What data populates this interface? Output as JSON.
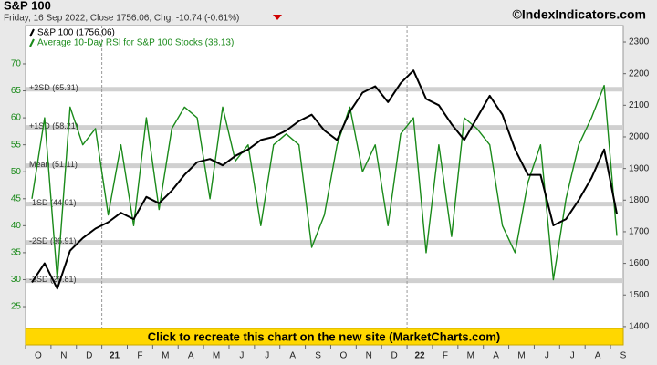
{
  "header": {
    "title": "S&P 100",
    "subtitle": "Friday, 16 Sep 2022, Close 1756.06, Chg. -10.74 (-0.61%)",
    "site": "©IndexIndicators.com"
  },
  "banner": "Click to recreate this chart on the new site (MarketCharts.com)",
  "chart_data": {
    "type": "line",
    "categories": [
      "O",
      null,
      "N",
      null,
      "D",
      null,
      "21",
      null,
      "F",
      null,
      "M",
      null,
      "A",
      null,
      "M",
      null,
      "J",
      null,
      "J",
      null,
      "A",
      null,
      "S",
      null,
      "O",
      null,
      "N",
      null,
      "D",
      null,
      "22",
      null,
      "F",
      null,
      "M",
      null,
      "A",
      null,
      "M",
      null,
      "J",
      null,
      "J",
      null,
      "A",
      null,
      "S"
    ],
    "series": [
      {
        "name": "S&P 100 (1756.06)",
        "color": "#000000",
        "axis": "y2",
        "values": [
          1540,
          1600,
          1520,
          1640,
          1680,
          1710,
          1730,
          1760,
          1740,
          1810,
          1790,
          1830,
          1880,
          1920,
          1930,
          1910,
          1940,
          1960,
          1990,
          2000,
          2020,
          2050,
          2070,
          2020,
          1990,
          2080,
          2140,
          2160,
          2110,
          2170,
          2210,
          2120,
          2100,
          2040,
          1990,
          2060,
          2130,
          2070,
          1960,
          1880,
          1880,
          1720,
          1740,
          1800,
          1870,
          1960,
          1756.06
        ]
      },
      {
        "name": "Average 10-Day RSI for S&P 100 Stocks (38.13)",
        "color": "#1a8a1a",
        "values": [
          45,
          60,
          30,
          62,
          55,
          58,
          42,
          55,
          40,
          60,
          43,
          58,
          62,
          60,
          45,
          62,
          52,
          55,
          40,
          55,
          57,
          55,
          36,
          42,
          55,
          62,
          50,
          55,
          40,
          57,
          60,
          35,
          55,
          38,
          60,
          58,
          55,
          40,
          35,
          48,
          55,
          30,
          45,
          55,
          60,
          66,
          38.13
        ]
      }
    ],
    "bands": [
      {
        "label": "+2SD (65.31)",
        "value": 65.31
      },
      {
        "label": "+1SD (58.21)",
        "value": 58.21
      },
      {
        "label": "Mean (51.11)",
        "value": 51.11
      },
      {
        "label": "-1SD (44.01)",
        "value": 44.01
      },
      {
        "label": "-2SD (36.91)",
        "value": 36.91
      },
      {
        "label": "-3SD (29.81)",
        "value": 29.81
      }
    ],
    "ylim": [
      17.9,
      77.1
    ],
    "yticks": [
      25,
      30,
      35,
      40,
      45,
      50,
      55,
      60,
      65,
      70
    ],
    "y2lim": [
      1342,
      2352
    ],
    "y2ticks": [
      1400,
      1500,
      1600,
      1700,
      1800,
      1900,
      2000,
      2100,
      2200,
      2300
    ]
  }
}
